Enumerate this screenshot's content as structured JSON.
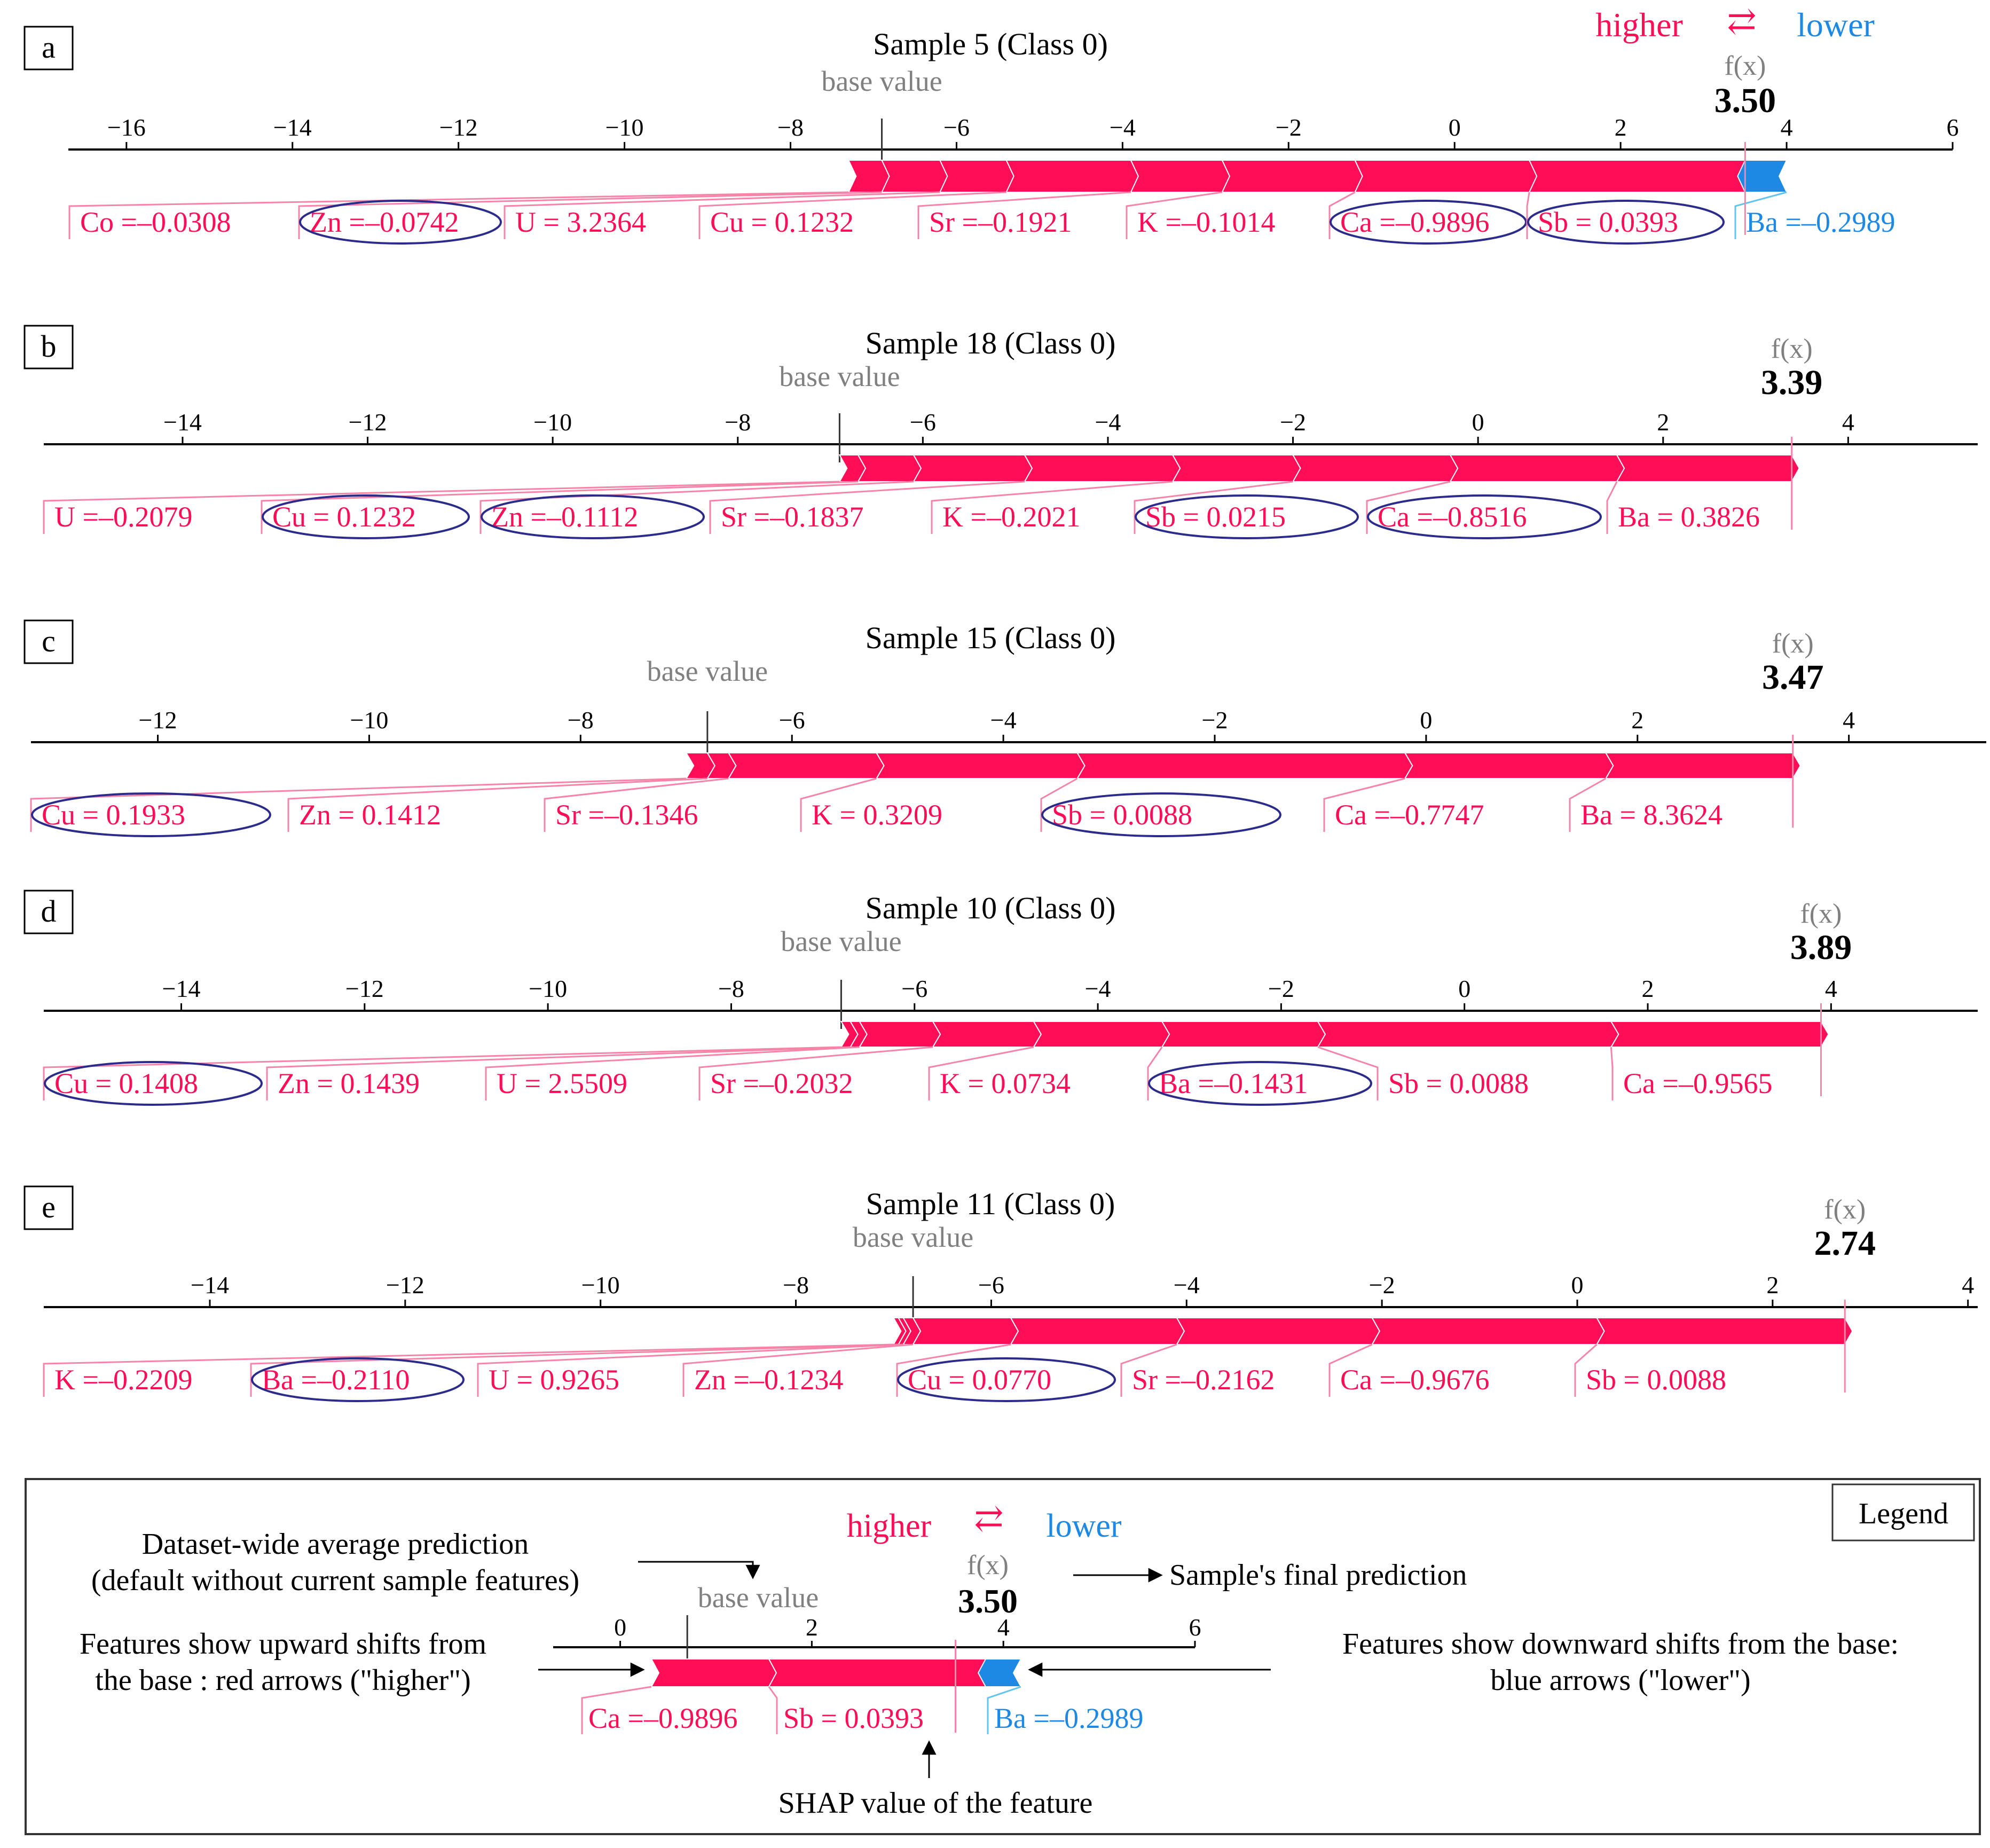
{
  "colors": {
    "higher": "#ff0d57",
    "lower": "#1e88e5",
    "higher_connector": "#f584a8",
    "lower_connector": "#60c3f0",
    "circle": "#2b2b8c",
    "axis": "#000000",
    "base_text": "#808080",
    "fx_text": "#808080"
  },
  "header": {
    "higher_label": "higher",
    "arrow_symbol": "⇄",
    "lower_label": "lower"
  },
  "chart_data": [
    {
      "type": "force_plot",
      "panel": "a",
      "title": "Sample 5 (Class 0)",
      "base_label": "base value",
      "fx_label": "f(x)",
      "fx_value": "3.50",
      "output": 3.5,
      "base_value": -6.9,
      "xlim": [
        -16.7,
        6.0
      ],
      "ticks": [
        -16,
        -14,
        -12,
        -10,
        -8,
        -6,
        -4,
        -2,
        0,
        2,
        4,
        6
      ],
      "features": [
        {
          "label": "Co =–0.0308",
          "start": -7.3,
          "end": -6.9,
          "sign": "higher",
          "circled": false
        },
        {
          "label": "Zn =–0.0742",
          "start": -6.9,
          "end": -6.2,
          "sign": "higher",
          "circled": true
        },
        {
          "label": "U = 3.2364",
          "start": -6.2,
          "end": -5.4,
          "sign": "higher",
          "circled": false
        },
        {
          "label": "Cu = 0.1232",
          "start": -5.4,
          "end": -3.9,
          "sign": "higher",
          "circled": false
        },
        {
          "label": "Sr =–0.1921",
          "start": -3.9,
          "end": -2.8,
          "sign": "higher",
          "circled": false
        },
        {
          "label": "K =–0.1014",
          "start": -2.8,
          "end": -1.2,
          "sign": "higher",
          "circled": false
        },
        {
          "label": "Ca =–0.9896",
          "start": -1.2,
          "end": 0.9,
          "sign": "higher",
          "circled": true
        },
        {
          "label": "Sb = 0.0393",
          "start": 0.9,
          "end": 3.5,
          "sign": "higher",
          "circled": true
        },
        {
          "label": "Ba =–0.2989",
          "start": 3.5,
          "end": 4.0,
          "sign": "lower",
          "circled": false
        }
      ]
    },
    {
      "type": "force_plot",
      "panel": "b",
      "title": "Sample 18 (Class 0)",
      "base_label": "base value",
      "fx_label": "f(x)",
      "fx_value": "3.39",
      "output": 3.39,
      "base_value": -6.9,
      "xlim": [
        -15.5,
        5.4
      ],
      "ticks": [
        -14,
        -12,
        -10,
        -8,
        -6,
        -4,
        -2,
        0,
        2,
        4
      ],
      "features": [
        {
          "label": "U =–0.2079",
          "start": -6.9,
          "end": -6.7,
          "sign": "higher",
          "circled": false
        },
        {
          "label": "Cu = 0.1232",
          "start": -6.7,
          "end": -6.1,
          "sign": "higher",
          "circled": true
        },
        {
          "label": "Zn =–0.1112",
          "start": -6.1,
          "end": -4.9,
          "sign": "higher",
          "circled": true
        },
        {
          "label": "Sr =–0.1837",
          "start": -4.9,
          "end": -3.3,
          "sign": "higher",
          "circled": false
        },
        {
          "label": "K =–0.2021",
          "start": -3.3,
          "end": -2.0,
          "sign": "higher",
          "circled": false
        },
        {
          "label": "Sb = 0.0215",
          "start": -2.0,
          "end": -0.3,
          "sign": "higher",
          "circled": true
        },
        {
          "label": "Ca =–0.8516",
          "start": -0.3,
          "end": 1.5,
          "sign": "higher",
          "circled": true
        },
        {
          "label": "Ba = 0.3826",
          "start": 1.5,
          "end": 3.39,
          "sign": "higher",
          "circled": false
        }
      ]
    },
    {
      "type": "force_plot",
      "panel": "c",
      "title": "Sample 15 (Class 0)",
      "base_label": "base value",
      "fx_label": "f(x)",
      "fx_value": "3.47",
      "output": 3.47,
      "base_value": -6.8,
      "xlim": [
        -13.2,
        5.3
      ],
      "ticks": [
        -12,
        -10,
        -8,
        -6,
        -4,
        -2,
        0,
        2,
        4
      ],
      "features": [
        {
          "label": "Cu = 0.1933",
          "start": -7.0,
          "end": -6.8,
          "sign": "higher",
          "circled": true
        },
        {
          "label": "Zn = 0.1412",
          "start": -6.8,
          "end": -6.6,
          "sign": "higher",
          "circled": false
        },
        {
          "label": "Sr =–0.1346",
          "start": -6.6,
          "end": -5.2,
          "sign": "higher",
          "circled": false
        },
        {
          "label": "K = 0.3209",
          "start": -5.2,
          "end": -3.3,
          "sign": "higher",
          "circled": false
        },
        {
          "label": "Sb = 0.0088",
          "start": -3.3,
          "end": -0.2,
          "sign": "higher",
          "circled": true
        },
        {
          "label": "Ca =–0.7747",
          "start": -0.2,
          "end": 1.7,
          "sign": "higher",
          "circled": false
        },
        {
          "label": "Ba = 8.3624",
          "start": 1.7,
          "end": 3.47,
          "sign": "higher",
          "circled": false
        }
      ]
    },
    {
      "type": "force_plot",
      "panel": "d",
      "title": "Sample 10 (Class 0)",
      "base_label": "base value",
      "fx_label": "f(x)",
      "fx_value": "3.89",
      "output": 3.89,
      "base_value": -6.8,
      "xlim": [
        -15.5,
        5.6
      ],
      "ticks": [
        -14,
        -12,
        -10,
        -8,
        -6,
        -4,
        -2,
        0,
        2,
        4
      ],
      "features": [
        {
          "label": "Cu = 0.1408",
          "start": -6.8,
          "end": -6.7,
          "sign": "higher",
          "circled": true
        },
        {
          "label": "Zn = 0.1439",
          "start": -6.7,
          "end": -6.6,
          "sign": "higher",
          "circled": false
        },
        {
          "label": "U = 2.5509",
          "start": -6.6,
          "end": -5.8,
          "sign": "higher",
          "circled": false
        },
        {
          "label": "Sr =–0.2032",
          "start": -5.8,
          "end": -4.7,
          "sign": "higher",
          "circled": false
        },
        {
          "label": "K = 0.0734",
          "start": -4.7,
          "end": -3.3,
          "sign": "higher",
          "circled": false
        },
        {
          "label": "Ba =–0.1431",
          "start": -3.3,
          "end": -1.6,
          "sign": "higher",
          "circled": true
        },
        {
          "label": "Sb = 0.0088",
          "start": -1.6,
          "end": 1.6,
          "sign": "higher",
          "circled": false
        },
        {
          "label": "Ca =–0.9565",
          "start": 1.6,
          "end": 3.89,
          "sign": "higher",
          "circled": false
        }
      ]
    },
    {
      "type": "force_plot",
      "panel": "e",
      "title": "Sample 11 (Class 0)",
      "base_label": "base value",
      "fx_label": "f(x)",
      "fx_value": "2.74",
      "output": 2.74,
      "base_value": -6.8,
      "xlim": [
        -15.7,
        4.1
      ],
      "ticks": [
        -14,
        -12,
        -10,
        -8,
        -6,
        -4,
        -2,
        0,
        2,
        4
      ],
      "features": [
        {
          "label": "K =–0.2209",
          "start": -7.0,
          "end": -6.95,
          "sign": "higher",
          "circled": false
        },
        {
          "label": "Ba =–0.2110",
          "start": -6.95,
          "end": -6.9,
          "sign": "higher",
          "circled": true
        },
        {
          "label": "U = 0.9265",
          "start": -6.9,
          "end": -6.8,
          "sign": "higher",
          "circled": false
        },
        {
          "label": "Zn =–0.1234",
          "start": -6.8,
          "end": -5.8,
          "sign": "higher",
          "circled": false
        },
        {
          "label": "Cu = 0.0770",
          "start": -5.8,
          "end": -4.1,
          "sign": "higher",
          "circled": true
        },
        {
          "label": "Sr =–0.2162",
          "start": -4.1,
          "end": -2.1,
          "sign": "higher",
          "circled": false
        },
        {
          "label": "Ca =–0.9676",
          "start": -2.1,
          "end": 0.2,
          "sign": "higher",
          "circled": false
        },
        {
          "label": "Sb = 0.0088",
          "start": 0.2,
          "end": 2.74,
          "sign": "higher",
          "circled": false
        }
      ]
    }
  ],
  "legend": {
    "title": "Legend",
    "higher_label": "higher",
    "arrow_symbol": "⇄",
    "lower_label": "lower",
    "base_label": "base value",
    "fx_label": "f(x)",
    "fx_value": "3.50",
    "ticks": [
      0,
      2,
      4,
      6
    ],
    "xlim": [
      -0.7,
      6.0
    ],
    "base_value": 0.7,
    "output": 3.5,
    "features": [
      {
        "label": "Ca =–0.9896",
        "start": -1.2,
        "end": 0.9,
        "sign": "higher"
      },
      {
        "label": "Sb = 0.0393",
        "start": 0.9,
        "end": 3.5,
        "sign": "higher"
      },
      {
        "label": "Ba =–0.2989",
        "start": 3.5,
        "end": 4.0,
        "sign": "lower"
      }
    ],
    "note_base_1": "Dataset-wide average prediction",
    "note_base_2": "(default without current sample features)",
    "note_fx": "Sample's final prediction",
    "note_up_1": "Features show upward shifts from",
    "note_up_2": "the base : red arrows (\"higher\")",
    "note_down_1": "Features show downward shifts from the base:",
    "note_down_2": "blue arrows (\"lower\")",
    "note_shap": "SHAP value of the feature"
  }
}
